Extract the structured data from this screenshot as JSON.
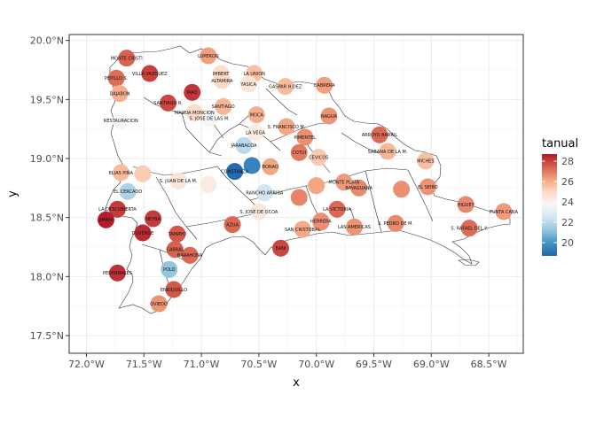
{
  "chart_data": {
    "type": "scatter",
    "title": "",
    "xlabel": "x",
    "ylabel": "y",
    "xlim": [
      -72.15,
      -68.2
    ],
    "ylim": [
      17.35,
      20.05
    ],
    "x_ticks": [
      {
        "value": -72.0,
        "label": "72.0°W"
      },
      {
        "value": -71.5,
        "label": "71.5°W"
      },
      {
        "value": -71.0,
        "label": "71.0°W"
      },
      {
        "value": -70.5,
        "label": "70.5°W"
      },
      {
        "value": -70.0,
        "label": "70.0°W"
      },
      {
        "value": -69.5,
        "label": "69.5°W"
      },
      {
        "value": -69.0,
        "label": "69.0°W"
      },
      {
        "value": -68.5,
        "label": "68.5°W"
      }
    ],
    "y_ticks": [
      {
        "value": 17.5,
        "label": "17.5°N"
      },
      {
        "value": 18.0,
        "label": "18.0°N"
      },
      {
        "value": 18.5,
        "label": "18.5°N"
      },
      {
        "value": 19.0,
        "label": "19.0°N"
      },
      {
        "value": 19.5,
        "label": "19.5°N"
      },
      {
        "value": 20.0,
        "label": "20.0°N"
      }
    ],
    "grid": true,
    "legend": {
      "title": "tanual",
      "position": "right",
      "range": [
        18.7,
        28.7
      ],
      "ticks": [
        {
          "value": 20,
          "label": "20"
        },
        {
          "value": 22,
          "label": "22"
        },
        {
          "value": 24,
          "label": "24"
        },
        {
          "value": 26,
          "label": "26"
        },
        {
          "value": 28,
          "label": "28"
        }
      ]
    },
    "colors": [
      "#2166ac",
      "#4393c3",
      "#92c5de",
      "#d1e5f0",
      "#f7f7f7",
      "#fddbc7",
      "#f4a582",
      "#d6604d",
      "#b2182b"
    ],
    "stations": [
      {
        "label": "MONTE CRISTI",
        "lon": -71.65,
        "lat": 19.85,
        "t": 27.4
      },
      {
        "label": "LUPERON",
        "lon": -70.94,
        "lat": 19.87,
        "t": 26.3
      },
      {
        "label": "PEPILLO S.",
        "lon": -71.74,
        "lat": 19.68,
        "t": 27.2
      },
      {
        "label": "VILLA VAZQUEZ",
        "lon": -71.45,
        "lat": 19.72,
        "t": 28.0
      },
      {
        "label": "IMBERT",
        "lon": -70.83,
        "lat": 19.72,
        "t": 24.9
      },
      {
        "label": "LA UNION",
        "lon": -70.54,
        "lat": 19.72,
        "t": 25.6
      },
      {
        "label": "ALTAMIRA",
        "lon": -70.82,
        "lat": 19.66,
        "t": 25.0
      },
      {
        "label": "YASICA",
        "lon": -70.59,
        "lat": 19.63,
        "t": 24.5
      },
      {
        "label": "GASPAR H.DEZ",
        "lon": -70.27,
        "lat": 19.61,
        "t": 25.7
      },
      {
        "label": "CABRERA",
        "lon": -69.93,
        "lat": 19.62,
        "t": 26.3
      },
      {
        "label": "DAJABON",
        "lon": -71.71,
        "lat": 19.55,
        "t": 26.0
      },
      {
        "label": "MAO",
        "lon": -71.08,
        "lat": 19.56,
        "t": 28.2
      },
      {
        "label": "SANTIAGO R.",
        "lon": -71.29,
        "lat": 19.47,
        "t": 27.9
      },
      {
        "label": "SANTIAGO",
        "lon": -70.81,
        "lat": 19.44,
        "t": 25.8
      },
      {
        "label": "MAGUA MONCION",
        "lon": -71.06,
        "lat": 19.39,
        "t": 24.9
      },
      {
        "label": "MOCA",
        "lon": -70.52,
        "lat": 19.37,
        "t": 26.0
      },
      {
        "label": "NAGUA",
        "lon": -69.89,
        "lat": 19.36,
        "t": 26.5
      },
      {
        "label": "RESTAURACION",
        "lon": -71.7,
        "lat": 19.32,
        "t": 23.8
      },
      {
        "label": "S. JOSE DE LAS M.",
        "lon": -70.93,
        "lat": 19.34,
        "t": 23.6
      },
      {
        "label": "S. FRANCISCO M.",
        "lon": -70.26,
        "lat": 19.27,
        "t": 26.2
      },
      {
        "label": "ARROYO BARRIL",
        "lon": -69.45,
        "lat": 19.2,
        "t": 27.3
      },
      {
        "label": "LA VEGA",
        "lon": -70.53,
        "lat": 19.22,
        "t": 24.3
      },
      {
        "label": "PIMENTEL",
        "lon": -70.1,
        "lat": 19.18,
        "t": 26.6
      },
      {
        "label": "JARABACOA",
        "lon": -70.63,
        "lat": 19.11,
        "t": 22.0
      },
      {
        "label": "COTUI",
        "lon": -70.15,
        "lat": 19.05,
        "t": 27.0
      },
      {
        "label": "SABANA DE LA M.",
        "lon": -69.38,
        "lat": 19.06,
        "t": 25.8
      },
      {
        "label": "CEVICOS",
        "lon": -69.98,
        "lat": 19.01,
        "t": 25.4
      },
      {
        "label": "BONAO",
        "lon": -70.4,
        "lat": 18.93,
        "t": 26.2
      },
      {
        "label": "MICHES",
        "lon": -69.05,
        "lat": 18.98,
        "t": 25.6
      },
      {
        "label": "CONSTANZA",
        "lon": -70.71,
        "lat": 18.89,
        "t": 18.8
      },
      {
        "label": "ELIAS PIÑA",
        "lon": -71.7,
        "lat": 18.88,
        "t": 25.7
      },
      {
        "label": "",
        "lon": -71.51,
        "lat": 18.87,
        "t": 25.3
      },
      {
        "label": "",
        "lon": -70.56,
        "lat": 18.94,
        "t": 19.5
      },
      {
        "label": "MONTE PLATA",
        "lon": -69.76,
        "lat": 18.8,
        "t": 26.4
      },
      {
        "label": "S. JUAN DE LA M.",
        "lon": -71.2,
        "lat": 18.81,
        "t": 24.5
      },
      {
        "label": "EL CERCADO",
        "lon": -71.64,
        "lat": 18.72,
        "t": 21.7
      },
      {
        "label": "",
        "lon": -70.94,
        "lat": 18.78,
        "t": 24.3
      },
      {
        "label": "",
        "lon": -70.0,
        "lat": 18.77,
        "t": 26.2
      },
      {
        "label": "BAYAGUANA",
        "lon": -69.63,
        "lat": 18.75,
        "t": 26.7
      },
      {
        "label": "",
        "lon": -69.26,
        "lat": 18.74,
        "t": 26.6
      },
      {
        "label": "EL SEIBO",
        "lon": -69.03,
        "lat": 18.76,
        "t": 26.5
      },
      {
        "label": "RANCHO ARRIBA",
        "lon": -70.45,
        "lat": 18.71,
        "t": 22.5
      },
      {
        "label": "",
        "lon": -70.15,
        "lat": 18.67,
        "t": 26.8
      },
      {
        "label": "LA DESCUBIERTA",
        "lon": -71.73,
        "lat": 18.57,
        "t": 28.1
      },
      {
        "label": "LA VICTORIA",
        "lon": -69.82,
        "lat": 18.57,
        "t": 27.3
      },
      {
        "label": "HIGUEY",
        "lon": -68.7,
        "lat": 18.61,
        "t": 26.7
      },
      {
        "label": "PUNTA CANA",
        "lon": -68.37,
        "lat": 18.55,
        "t": 26.4
      },
      {
        "label": "JIMANI",
        "lon": -71.83,
        "lat": 18.48,
        "t": 28.6
      },
      {
        "label": "NEYBA",
        "lon": -71.42,
        "lat": 18.49,
        "t": 28.1
      },
      {
        "label": "S. JOSE DE OCOA",
        "lon": -70.5,
        "lat": 18.55,
        "t": 24.4
      },
      {
        "label": "",
        "lon": -69.96,
        "lat": 18.46,
        "t": 26.7
      },
      {
        "label": "AZUA",
        "lon": -70.73,
        "lat": 18.44,
        "t": 27.3
      },
      {
        "label": "HERRERA",
        "lon": -69.96,
        "lat": 18.47,
        "t": 26.6
      },
      {
        "label": "SAN CRISTOBAL",
        "lon": -70.12,
        "lat": 18.4,
        "t": 26.1
      },
      {
        "label": "LAS AMERICAS",
        "lon": -69.67,
        "lat": 18.42,
        "t": 26.5
      },
      {
        "label": "S. PEDRO DE M.",
        "lon": -69.31,
        "lat": 18.45,
        "t": 26.7
      },
      {
        "label": "S. RAFAEL DEL Y.",
        "lon": -68.67,
        "lat": 18.41,
        "t": 27.2
      },
      {
        "label": "DUVERGE",
        "lon": -71.51,
        "lat": 18.37,
        "t": 28.4
      },
      {
        "label": "TAMAYO",
        "lon": -71.21,
        "lat": 18.36,
        "t": 27.6
      },
      {
        "label": "BANI",
        "lon": -70.31,
        "lat": 18.24,
        "t": 27.9
      },
      {
        "label": "CABRAL",
        "lon": -71.23,
        "lat": 18.23,
        "t": 27.4
      },
      {
        "label": "BARAHONA",
        "lon": -71.1,
        "lat": 18.18,
        "t": 27.3
      },
      {
        "label": "POLO",
        "lon": -71.28,
        "lat": 18.06,
        "t": 21.2
      },
      {
        "label": "PEDERNALES",
        "lon": -71.73,
        "lat": 18.03,
        "t": 28.3
      },
      {
        "label": "ENRIQUILLO",
        "lon": -71.24,
        "lat": 17.89,
        "t": 27.6
      },
      {
        "label": "OVIEDO",
        "lon": -71.37,
        "lat": 17.77,
        "t": 26.5
      }
    ]
  }
}
